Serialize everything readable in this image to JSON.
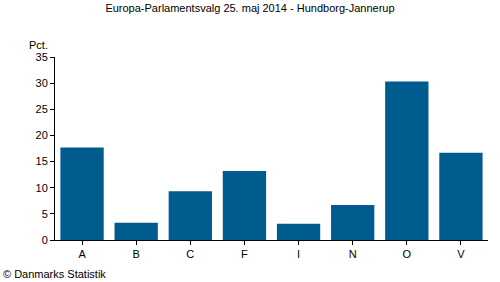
{
  "chart_data": {
    "type": "bar",
    "title": "Europa-Parlamentsvalg 25. maj 2014 - Hundborg-Jannerup",
    "ylabel": "Pct.",
    "annotations": [
      "© Danmarks Statistik"
    ],
    "categories": [
      "A",
      "B",
      "C",
      "F",
      "I",
      "N",
      "O",
      "V"
    ],
    "values": [
      17.7,
      3.3,
      9.3,
      13.2,
      3.1,
      6.7,
      30.3,
      16.7
    ],
    "color": "#005b8e",
    "ylim": [
      0,
      35
    ],
    "yticks": [
      0,
      5,
      10,
      15,
      20,
      25,
      30,
      35
    ],
    "grid": false
  }
}
